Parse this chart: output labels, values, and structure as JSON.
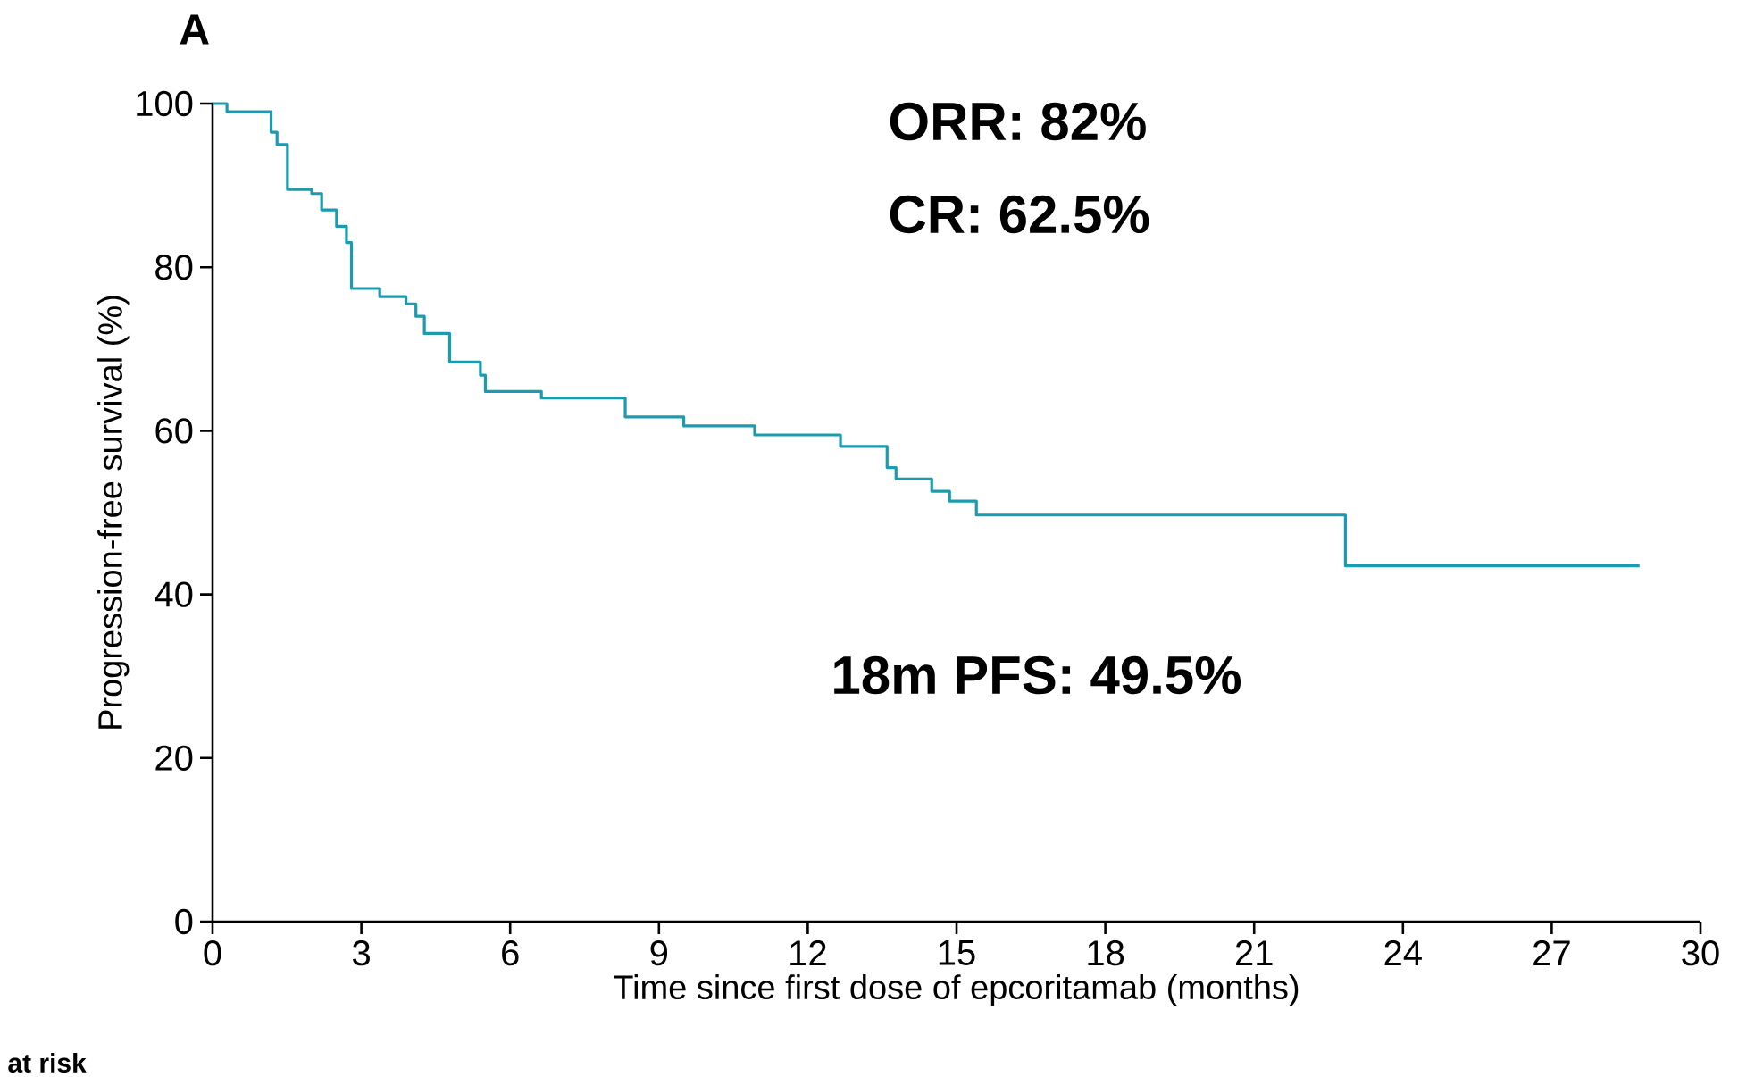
{
  "chart_data": {
    "type": "step",
    "title": "A",
    "xlabel": "Time since first dose of epcoritamab (months)",
    "ylabel": "Progression-free survival (%)",
    "x": [
      0,
      0.29,
      1.18,
      1.3,
      1.51,
      2.0,
      2.2,
      2.5,
      2.7,
      2.8,
      3.37,
      3.9,
      4.1,
      4.27,
      4.78,
      5.4,
      5.5,
      6.63,
      8.32,
      9.5,
      10.93,
      12.66,
      13.6,
      13.78,
      14.5,
      14.86,
      15.4,
      22.84,
      28.77
    ],
    "series": [
      {
        "color": "#1a9bb0",
        "values": [
          100,
          99,
          96.5,
          95,
          89.5,
          89,
          87,
          85,
          83,
          77.4,
          76.4,
          75.5,
          74,
          71.9,
          68.4,
          66.8,
          64.8,
          64,
          61.7,
          60.6,
          59.5,
          58.1,
          55.5,
          54.1,
          52.6,
          51.4,
          49.7,
          43.5,
          43.5
        ]
      }
    ],
    "xlim": [
      0,
      30
    ],
    "ylim": [
      0,
      100
    ],
    "xticks": [
      0,
      3,
      6,
      9,
      12,
      15,
      18,
      21,
      24,
      27,
      30
    ],
    "yticks": [
      0,
      20,
      40,
      60,
      80,
      100
    ],
    "line_style": "solid",
    "marker": "none",
    "annotations": [
      "ORR: 82%",
      "CR: 62.5%",
      "18m PFS: 49.5%",
      "at risk"
    ]
  }
}
